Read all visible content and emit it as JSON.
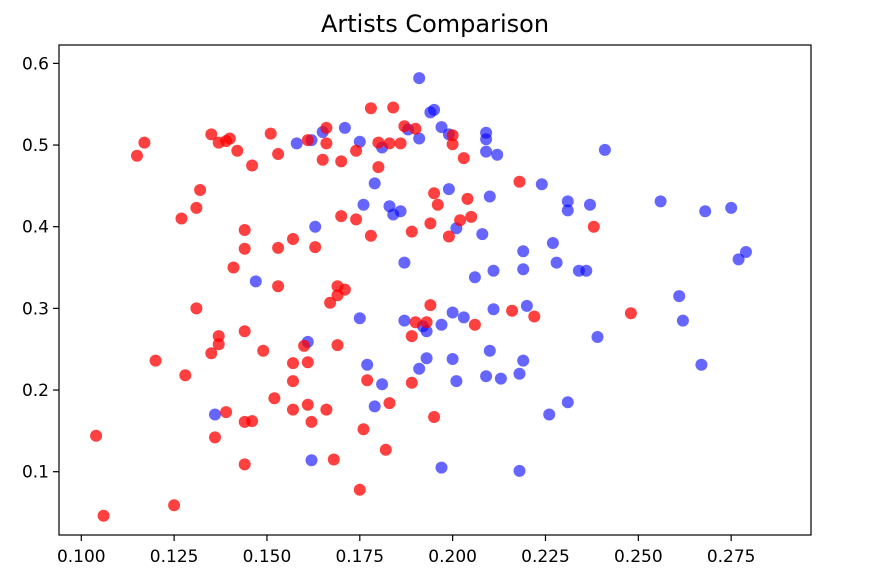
{
  "chart_data": {
    "type": "scatter",
    "title": "Artists Comparison",
    "xlabel": "",
    "ylabel": "",
    "xlim": [
      0.094,
      0.2965
    ],
    "ylim": [
      0.0225,
      0.6225
    ],
    "xticks": [
      {
        "value": 0.1,
        "label": "0.100"
      },
      {
        "value": 0.125,
        "label": "0.125"
      },
      {
        "value": 0.15,
        "label": "0.150"
      },
      {
        "value": 0.175,
        "label": "0.175"
      },
      {
        "value": 0.2,
        "label": "0.200"
      },
      {
        "value": 0.225,
        "label": "0.225"
      },
      {
        "value": 0.25,
        "label": "0.250"
      },
      {
        "value": 0.275,
        "label": "0.275"
      }
    ],
    "yticks": [
      {
        "value": 0.1,
        "label": "0.1"
      },
      {
        "value": 0.2,
        "label": "0.2"
      },
      {
        "value": 0.3,
        "label": "0.3"
      },
      {
        "value": 0.4,
        "label": "0.4"
      },
      {
        "value": 0.5,
        "label": "0.5"
      },
      {
        "value": 0.6,
        "label": "0.6"
      }
    ],
    "grid": false,
    "legend": "none",
    "series": [
      {
        "color": "#0000ff",
        "opacity": 0.6,
        "points": [
          [
            0.191,
            0.582
          ],
          [
            0.194,
            0.54
          ],
          [
            0.195,
            0.543
          ],
          [
            0.197,
            0.522
          ],
          [
            0.199,
            0.513
          ],
          [
            0.209,
            0.515
          ],
          [
            0.209,
            0.507
          ],
          [
            0.209,
            0.492
          ],
          [
            0.212,
            0.488
          ],
          [
            0.241,
            0.494
          ],
          [
            0.171,
            0.521
          ],
          [
            0.158,
            0.502
          ],
          [
            0.162,
            0.506
          ],
          [
            0.165,
            0.516
          ],
          [
            0.175,
            0.504
          ],
          [
            0.181,
            0.497
          ],
          [
            0.188,
            0.519
          ],
          [
            0.191,
            0.508
          ],
          [
            0.199,
            0.446
          ],
          [
            0.21,
            0.437
          ],
          [
            0.224,
            0.452
          ],
          [
            0.231,
            0.431
          ],
          [
            0.231,
            0.42
          ],
          [
            0.237,
            0.427
          ],
          [
            0.256,
            0.431
          ],
          [
            0.268,
            0.419
          ],
          [
            0.275,
            0.423
          ],
          [
            0.279,
            0.369
          ],
          [
            0.277,
            0.36
          ],
          [
            0.179,
            0.453
          ],
          [
            0.176,
            0.427
          ],
          [
            0.183,
            0.425
          ],
          [
            0.184,
            0.415
          ],
          [
            0.186,
            0.419
          ],
          [
            0.163,
            0.4
          ],
          [
            0.201,
            0.398
          ],
          [
            0.208,
            0.391
          ],
          [
            0.219,
            0.37
          ],
          [
            0.227,
            0.38
          ],
          [
            0.206,
            0.338
          ],
          [
            0.211,
            0.346
          ],
          [
            0.219,
            0.348
          ],
          [
            0.228,
            0.356
          ],
          [
            0.234,
            0.346
          ],
          [
            0.236,
            0.346
          ],
          [
            0.187,
            0.356
          ],
          [
            0.147,
            0.333
          ],
          [
            0.261,
            0.315
          ],
          [
            0.211,
            0.299
          ],
          [
            0.22,
            0.303
          ],
          [
            0.262,
            0.285
          ],
          [
            0.239,
            0.265
          ],
          [
            0.2,
            0.295
          ],
          [
            0.203,
            0.289
          ],
          [
            0.187,
            0.285
          ],
          [
            0.192,
            0.278
          ],
          [
            0.193,
            0.272
          ],
          [
            0.197,
            0.28
          ],
          [
            0.175,
            0.288
          ],
          [
            0.161,
            0.259
          ],
          [
            0.21,
            0.248
          ],
          [
            0.219,
            0.236
          ],
          [
            0.2,
            0.238
          ],
          [
            0.193,
            0.239
          ],
          [
            0.191,
            0.226
          ],
          [
            0.177,
            0.231
          ],
          [
            0.209,
            0.217
          ],
          [
            0.213,
            0.214
          ],
          [
            0.218,
            0.22
          ],
          [
            0.267,
            0.231
          ],
          [
            0.201,
            0.211
          ],
          [
            0.181,
            0.207
          ],
          [
            0.179,
            0.18
          ],
          [
            0.136,
            0.17
          ],
          [
            0.226,
            0.17
          ],
          [
            0.231,
            0.185
          ],
          [
            0.162,
            0.114
          ],
          [
            0.197,
            0.105
          ],
          [
            0.218,
            0.101
          ]
        ]
      },
      {
        "color": "#ff0000",
        "opacity": 0.75,
        "points": [
          [
            0.178,
            0.545
          ],
          [
            0.184,
            0.546
          ],
          [
            0.187,
            0.523
          ],
          [
            0.19,
            0.52
          ],
          [
            0.2,
            0.512
          ],
          [
            0.18,
            0.503
          ],
          [
            0.183,
            0.502
          ],
          [
            0.186,
            0.502
          ],
          [
            0.2,
            0.501
          ],
          [
            0.203,
            0.484
          ],
          [
            0.166,
            0.521
          ],
          [
            0.161,
            0.506
          ],
          [
            0.166,
            0.502
          ],
          [
            0.174,
            0.493
          ],
          [
            0.17,
            0.48
          ],
          [
            0.165,
            0.482
          ],
          [
            0.18,
            0.473
          ],
          [
            0.151,
            0.514
          ],
          [
            0.153,
            0.489
          ],
          [
            0.135,
            0.513
          ],
          [
            0.137,
            0.503
          ],
          [
            0.139,
            0.505
          ],
          [
            0.14,
            0.508
          ],
          [
            0.142,
            0.493
          ],
          [
            0.146,
            0.475
          ],
          [
            0.117,
            0.503
          ],
          [
            0.115,
            0.487
          ],
          [
            0.132,
            0.445
          ],
          [
            0.131,
            0.423
          ],
          [
            0.127,
            0.41
          ],
          [
            0.218,
            0.455
          ],
          [
            0.238,
            0.4
          ],
          [
            0.195,
            0.441
          ],
          [
            0.196,
            0.427
          ],
          [
            0.204,
            0.434
          ],
          [
            0.202,
            0.408
          ],
          [
            0.205,
            0.412
          ],
          [
            0.194,
            0.404
          ],
          [
            0.189,
            0.394
          ],
          [
            0.199,
            0.388
          ],
          [
            0.17,
            0.413
          ],
          [
            0.174,
            0.409
          ],
          [
            0.178,
            0.389
          ],
          [
            0.163,
            0.375
          ],
          [
            0.157,
            0.385
          ],
          [
            0.153,
            0.374
          ],
          [
            0.144,
            0.396
          ],
          [
            0.144,
            0.373
          ],
          [
            0.141,
            0.35
          ],
          [
            0.153,
            0.327
          ],
          [
            0.169,
            0.327
          ],
          [
            0.171,
            0.323
          ],
          [
            0.169,
            0.316
          ],
          [
            0.167,
            0.307
          ],
          [
            0.131,
            0.3
          ],
          [
            0.194,
            0.304
          ],
          [
            0.19,
            0.283
          ],
          [
            0.193,
            0.283
          ],
          [
            0.216,
            0.297
          ],
          [
            0.222,
            0.29
          ],
          [
            0.206,
            0.28
          ],
          [
            0.248,
            0.294
          ],
          [
            0.189,
            0.266
          ],
          [
            0.137,
            0.266
          ],
          [
            0.137,
            0.256
          ],
          [
            0.135,
            0.245
          ],
          [
            0.144,
            0.272
          ],
          [
            0.149,
            0.248
          ],
          [
            0.16,
            0.254
          ],
          [
            0.169,
            0.255
          ],
          [
            0.12,
            0.236
          ],
          [
            0.157,
            0.233
          ],
          [
            0.161,
            0.234
          ],
          [
            0.128,
            0.218
          ],
          [
            0.157,
            0.211
          ],
          [
            0.177,
            0.212
          ],
          [
            0.189,
            0.209
          ],
          [
            0.152,
            0.19
          ],
          [
            0.157,
            0.176
          ],
          [
            0.161,
            0.182
          ],
          [
            0.166,
            0.176
          ],
          [
            0.183,
            0.184
          ],
          [
            0.139,
            0.173
          ],
          [
            0.144,
            0.161
          ],
          [
            0.146,
            0.162
          ],
          [
            0.162,
            0.161
          ],
          [
            0.176,
            0.152
          ],
          [
            0.195,
            0.167
          ],
          [
            0.136,
            0.142
          ],
          [
            0.104,
            0.144
          ],
          [
            0.182,
            0.127
          ],
          [
            0.168,
            0.115
          ],
          [
            0.144,
            0.109
          ],
          [
            0.175,
            0.078
          ],
          [
            0.125,
            0.059
          ],
          [
            0.106,
            0.046
          ]
        ]
      }
    ]
  }
}
